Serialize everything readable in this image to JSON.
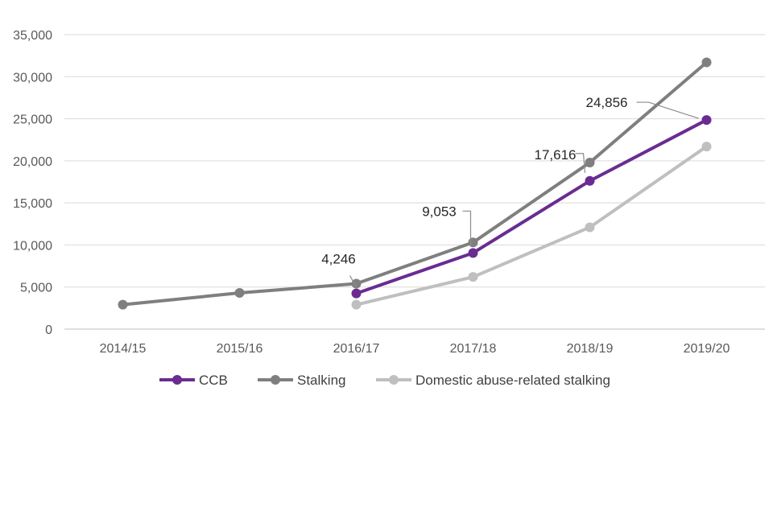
{
  "chart_data": {
    "type": "line",
    "title": "",
    "xlabel": "",
    "ylabel": "",
    "categories": [
      "2014/15",
      "2015/16",
      "2016/17",
      "2017/18",
      "2018/19",
      "2019/20"
    ],
    "ylim": [
      0,
      35000
    ],
    "yticks": [
      0,
      5000,
      10000,
      15000,
      20000,
      25000,
      30000,
      35000
    ],
    "ytick_labels": [
      "0",
      "5,000",
      "10,000",
      "15,000",
      "20,000",
      "25,000",
      "30,000",
      "35,000"
    ],
    "grid": true,
    "legend_position": "bottom",
    "series": [
      {
        "name": "CCB",
        "color": "#6a2c91",
        "values": [
          null,
          null,
          4246,
          9053,
          17616,
          24856
        ]
      },
      {
        "name": "Stalking",
        "color": "#7f7f7f",
        "values": [
          2900,
          4300,
          5400,
          10300,
          19800,
          31700
        ]
      },
      {
        "name": "Domestic abuse-related stalking",
        "color": "#bfbfbf",
        "values": [
          null,
          null,
          2900,
          6200,
          12100,
          21700
        ]
      }
    ],
    "annotations": [
      {
        "series": "CCB",
        "category": "2016/17",
        "text": "4,246"
      },
      {
        "series": "CCB",
        "category": "2017/18",
        "text": "9,053"
      },
      {
        "series": "CCB",
        "category": "2018/19",
        "text": "17,616"
      },
      {
        "series": "CCB",
        "category": "2019/20",
        "text": "24,856"
      }
    ]
  }
}
